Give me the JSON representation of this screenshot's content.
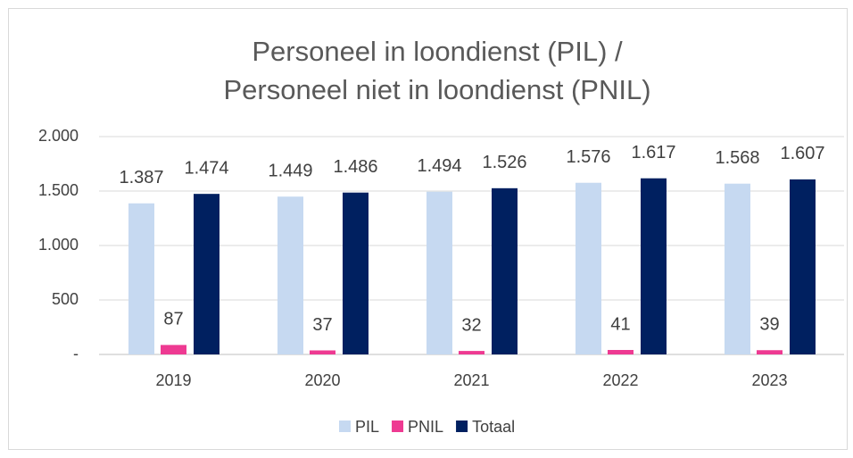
{
  "chart_data": {
    "type": "bar",
    "title": [
      "Personeel in loondienst (PIL) /",
      "Personeel niet in loondienst (PNIL)"
    ],
    "categories": [
      "2019",
      "2020",
      "2021",
      "2022",
      "2023"
    ],
    "series": [
      {
        "name": "PIL",
        "color": "#c6d9f1",
        "values": [
          1387,
          1449,
          1494,
          1576,
          1568
        ],
        "value_labels": [
          "1.387",
          "1.449",
          "1.494",
          "1.576",
          "1.568"
        ]
      },
      {
        "name": "PNIL",
        "color": "#ee3a92",
        "values": [
          87,
          37,
          32,
          41,
          39
        ]
      },
      {
        "name": "Totaal",
        "color": "#002060",
        "values": [
          1474,
          1486,
          1526,
          1617,
          1607
        ],
        "value_labels": [
          "1.474",
          "1.486",
          "1.526",
          "1.617",
          "1.607"
        ]
      }
    ],
    "ylim": [
      0,
      2000
    ],
    "yticks": [
      {
        "value": 0,
        "label": "-"
      },
      500,
      {
        "value": 1000,
        "label": "1.000"
      },
      {
        "value": 1500,
        "label": "1.500"
      },
      {
        "value": 2000,
        "label": "2.000"
      }
    ],
    "grid": true,
    "legend": "bottom"
  }
}
